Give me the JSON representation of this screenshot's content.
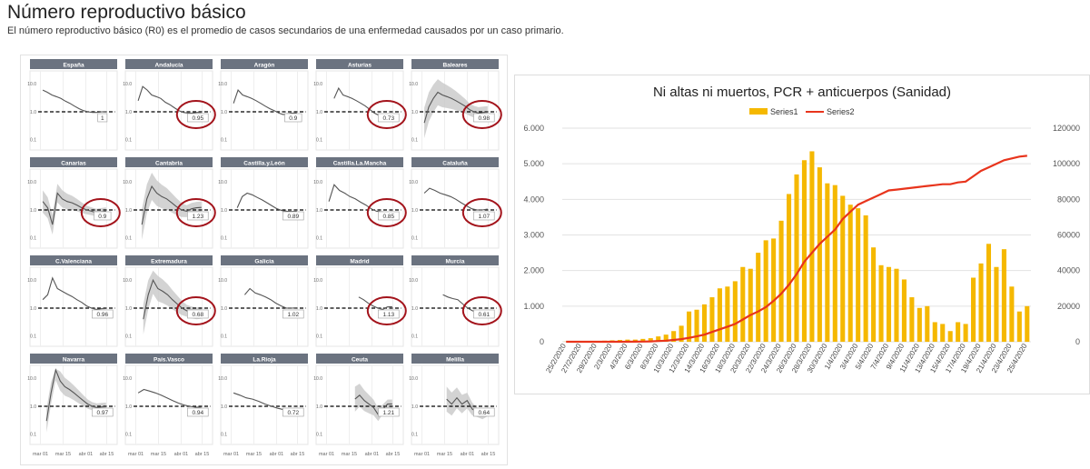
{
  "page": {
    "title": "Número reproductivo básico",
    "subtitle": "El número reproductivo básico (R0) es el promedio de casos secundarios de una enfermedad causados por un caso primario."
  },
  "small_multiples": {
    "x_ticks": [
      "mar 01",
      "mar 15",
      "abr 01",
      "abr 15"
    ],
    "y_ticks": [
      "10.0",
      "1.0",
      "0.1"
    ],
    "reference_line": 1.0,
    "log_scale": true,
    "header_color": "#6b7380",
    "line_color": "#555555",
    "band_color": "#c8c8c8",
    "highlight_color": "#a3131b",
    "panels": [
      {
        "name": "España",
        "value": "1",
        "circled": false,
        "start": 0.05,
        "end": 0.9,
        "pts": [
          6,
          5,
          4,
          3.5,
          3,
          2.4,
          2,
          1.6,
          1.3,
          1.1,
          1.0,
          0.95,
          0.95,
          1.0,
          1.0
        ]
      },
      {
        "name": "Andalucía",
        "value": "0.95",
        "circled": true,
        "start": 0.05,
        "end": 0.9,
        "pts": [
          2.5,
          8,
          6,
          4,
          3.5,
          3,
          2.2,
          1.8,
          1.4,
          1.1,
          0.95,
          0.9,
          0.9,
          0.95,
          0.95
        ]
      },
      {
        "name": "Aragón",
        "value": "0.9",
        "circled": false,
        "start": 0.05,
        "end": 0.9,
        "pts": [
          2,
          6,
          4,
          3.5,
          3,
          2.5,
          2,
          1.6,
          1.3,
          1.1,
          0.9,
          0.8,
          0.85,
          0.9,
          0.9
        ]
      },
      {
        "name": "Asturias",
        "value": "0.73",
        "circled": true,
        "start": 0.12,
        "end": 0.9,
        "pts": [
          3,
          7,
          4,
          3.5,
          3,
          2.5,
          2,
          1.6,
          1.2,
          0.9,
          0.75,
          0.7,
          0.72,
          0.73
        ]
      },
      {
        "name": "Baleares",
        "value": "0.98",
        "circled": true,
        "start": 0.05,
        "end": 0.9,
        "band": 2.5,
        "pts": [
          0.4,
          1.5,
          3,
          5,
          4,
          3.5,
          3,
          2.5,
          2,
          1.6,
          1.2,
          1.0,
          0.9,
          0.95,
          0.98
        ]
      },
      {
        "name": "Canarias",
        "value": "0.9",
        "circled": true,
        "start": 0.05,
        "end": 0.9,
        "band": 1.5,
        "pts": [
          2,
          1.2,
          0.3,
          4,
          2.5,
          2,
          1.8,
          1.5,
          1.2,
          1.0,
          0.9,
          0.8,
          0.85,
          0.9
        ]
      },
      {
        "name": "Cantabria",
        "value": "1.23",
        "circled": true,
        "start": 0.1,
        "end": 0.9,
        "band": 2.5,
        "pts": [
          0.3,
          2.5,
          7,
          4,
          3,
          2.5,
          1.8,
          1.3,
          1.0,
          0.9,
          1.1,
          1.2,
          1.23
        ]
      },
      {
        "name": "Castilla.y.León",
        "value": "0.89",
        "circled": false,
        "start": 0.1,
        "end": 0.9,
        "pts": [
          1.2,
          3,
          4,
          3.5,
          2.8,
          2.3,
          1.8,
          1.4,
          1.1,
          0.95,
          0.9,
          0.88,
          0.89
        ]
      },
      {
        "name": "Castilla.La.Mancha",
        "value": "0.85",
        "circled": true,
        "start": 0.05,
        "end": 0.9,
        "pts": [
          2,
          8,
          5,
          4,
          3,
          2.5,
          1.9,
          1.5,
          1.1,
          0.9,
          0.85,
          0.8,
          0.85
        ]
      },
      {
        "name": "Cataluña",
        "value": "1.07",
        "circled": true,
        "start": 0.05,
        "end": 0.9,
        "pts": [
          4,
          6,
          5,
          4,
          3.5,
          3,
          2.4,
          1.8,
          1.4,
          1.1,
          1.0,
          1.0,
          1.07
        ]
      },
      {
        "name": "C.Valenciana",
        "value": "0.96",
        "circled": false,
        "start": 0.05,
        "end": 0.9,
        "pts": [
          2,
          3,
          12,
          5,
          4,
          3.2,
          2.6,
          2,
          1.6,
          1.2,
          1.0,
          0.9,
          0.95,
          0.96
        ]
      },
      {
        "name": "Extremadura",
        "value": "0.68",
        "circled": true,
        "start": 0.12,
        "end": 0.9,
        "band": 2.5,
        "pts": [
          0.4,
          3,
          10,
          5,
          4,
          3,
          2,
          1.4,
          1.0,
          0.8,
          0.7,
          0.65,
          0.68
        ]
      },
      {
        "name": "Galicia",
        "value": "1.02",
        "circled": false,
        "start": 0.2,
        "end": 0.9,
        "pts": [
          3,
          5,
          3.5,
          3,
          2.5,
          2,
          1.5,
          1.2,
          1.0,
          1.0,
          1.02
        ]
      },
      {
        "name": "Madrid",
        "value": "1.13",
        "circled": true,
        "start": 0.45,
        "end": 0.9,
        "pts": [
          2.5,
          2,
          1.5,
          1.2,
          1.0,
          0.9,
          1.1,
          1.13
        ]
      },
      {
        "name": "Murcia",
        "value": "0.61",
        "circled": true,
        "start": 0.3,
        "end": 0.9,
        "pts": [
          3,
          2.5,
          2.2,
          2,
          1.4,
          1.0,
          0.8,
          0.7,
          0.6,
          0.61
        ]
      },
      {
        "name": "Navarra",
        "value": "0.97",
        "circled": false,
        "start": 0.1,
        "end": 0.9,
        "band": 1.6,
        "pts": [
          0.3,
          3,
          20,
          8,
          5,
          4,
          3,
          2.2,
          1.6,
          1.2,
          1.0,
          0.9,
          0.95,
          0.97
        ]
      },
      {
        "name": "País.Vasco",
        "value": "0.94",
        "circled": false,
        "start": 0.05,
        "end": 0.9,
        "pts": [
          3,
          4,
          3.5,
          3,
          2.5,
          2,
          1.6,
          1.3,
          1.1,
          1.0,
          0.92,
          0.94
        ]
      },
      {
        "name": "La.Rioja",
        "value": "0.72",
        "circled": false,
        "start": 0.05,
        "end": 0.9,
        "pts": [
          3,
          2.5,
          2,
          1.8,
          1.5,
          1.2,
          1.0,
          0.85,
          0.75,
          0.7,
          0.72
        ]
      },
      {
        "name": "Ceuta",
        "value": "1.21",
        "circled": false,
        "start": 0.4,
        "end": 0.9,
        "band": 1.8,
        "pts": [
          1.8,
          2.5,
          1.6,
          1.2,
          0.9,
          0.5,
          0.8,
          1.2,
          1.21
        ]
      },
      {
        "name": "Melilla",
        "value": "0.64",
        "circled": false,
        "start": 0.35,
        "end": 0.9,
        "band": 1.8,
        "pts": [
          1.8,
          1.2,
          2,
          1.2,
          1.6,
          0.8,
          0.6,
          0.5,
          0.64
        ]
      }
    ]
  },
  "chart_data": {
    "type": "bar",
    "title": "Ni altas ni muertos, PCR + anticuerpos (Sanidad)",
    "legend_position": "top",
    "grid": true,
    "categories": [
      "25/2/2020",
      "26/2/2020",
      "27/2/2020",
      "28/2/2020",
      "29/2/2020",
      "1/3/2020",
      "2/3/2020",
      "3/3/2020",
      "4/3/2020",
      "5/3/2020",
      "6/3/2020",
      "7/3/2020",
      "8/3/2020",
      "9/3/2020",
      "10/3/2020",
      "11/3/2020",
      "12/3/2020",
      "13/3/2020",
      "14/3/2020",
      "15/3/2020",
      "16/3/2020",
      "17/3/2020",
      "18/3/2020",
      "19/3/2020",
      "20/3/2020",
      "21/3/2020",
      "22/3/2020",
      "23/3/2020",
      "24/3/2020",
      "25/3/2020",
      "26/3/2020",
      "27/3/2020",
      "28/3/2020",
      "29/3/2020",
      "30/3/2020",
      "31/3/2020",
      "1/4/2020",
      "2/4/2020",
      "3/4/2020",
      "4/4/2020",
      "5/4/2020",
      "6/4/2020",
      "7/4/2020",
      "8/4/2020",
      "9/4/2020",
      "10/4/2020",
      "11/4/2020",
      "12/4/2020",
      "13/4/2020",
      "14/4/2020",
      "15/4/2020",
      "16/4/2020",
      "17/4/2020",
      "18/4/2020",
      "19/4/2020",
      "20/4/2020",
      "21/4/2020",
      "22/4/2020",
      "23/4/2020",
      "24/4/2020",
      "25/4/2020"
    ],
    "x_tick_labels": [
      "25/2/2020",
      "27/2/2020",
      "29/2/2020",
      "2/3/2020",
      "4/3/2020",
      "6/3/2020",
      "8/3/2020",
      "10/3/2020",
      "12/3/2020",
      "14/3/2020",
      "16/3/2020",
      "18/3/2020",
      "20/3/2020",
      "22/3/2020",
      "24/3/2020",
      "26/3/2020",
      "28/3/2020",
      "30/3/2020",
      "1/4/2020",
      "3/4/2020",
      "5/4/2020",
      "7/4/2020",
      "9/4/2020",
      "11/4/2020",
      "13/4/2020",
      "15/4/2020",
      "17/4/2020",
      "19/4/2020",
      "21/4/2020",
      "23/4/2020",
      "25/4/2020"
    ],
    "y_left": {
      "ylim": [
        0,
        6000
      ],
      "ticks": [
        "0",
        "1.000",
        "2.000",
        "3.000",
        "4.000",
        "5.000",
        "6.000"
      ]
    },
    "y_right": {
      "ylim": [
        0,
        120000
      ],
      "ticks": [
        "0",
        "20000",
        "40000",
        "60000",
        "80000",
        "100000",
        "120000"
      ]
    },
    "series": [
      {
        "name": "Series1",
        "type": "bar",
        "axis": "left",
        "color": "#f5b800",
        "values": [
          5,
          10,
          15,
          20,
          25,
          30,
          40,
          50,
          60,
          60,
          80,
          100,
          150,
          200,
          300,
          450,
          850,
          900,
          1050,
          1250,
          1500,
          1550,
          1700,
          2100,
          2050,
          2500,
          2850,
          2900,
          3400,
          4150,
          4700,
          5100,
          5350,
          4900,
          4450,
          4400,
          4100,
          3850,
          3750,
          3550,
          2650,
          2150,
          2100,
          2050,
          1750,
          1250,
          950,
          1000,
          550,
          500,
          300,
          550,
          500,
          1800,
          2200,
          2750,
          2100,
          2600,
          1550,
          850,
          1000
        ]
      },
      {
        "name": "Series2",
        "type": "line",
        "axis": "right",
        "color": "#e8341c",
        "values": [
          0,
          0,
          0,
          0,
          0,
          0,
          0,
          0,
          0,
          50,
          100,
          200,
          400,
          600,
          1000,
          1500,
          2200,
          3000,
          4000,
          5500,
          7000,
          8500,
          10000,
          12500,
          15000,
          17000,
          19500,
          23000,
          27000,
          32000,
          38000,
          45000,
          50000,
          55000,
          59000,
          63000,
          69000,
          73000,
          77000,
          79000,
          81000,
          83000,
          85000,
          85500,
          86000,
          86500,
          87000,
          87500,
          88000,
          88500,
          88500,
          89500,
          90000,
          93000,
          96000,
          98000,
          100000,
          102000,
          103000,
          104000,
          104500
        ]
      }
    ]
  }
}
